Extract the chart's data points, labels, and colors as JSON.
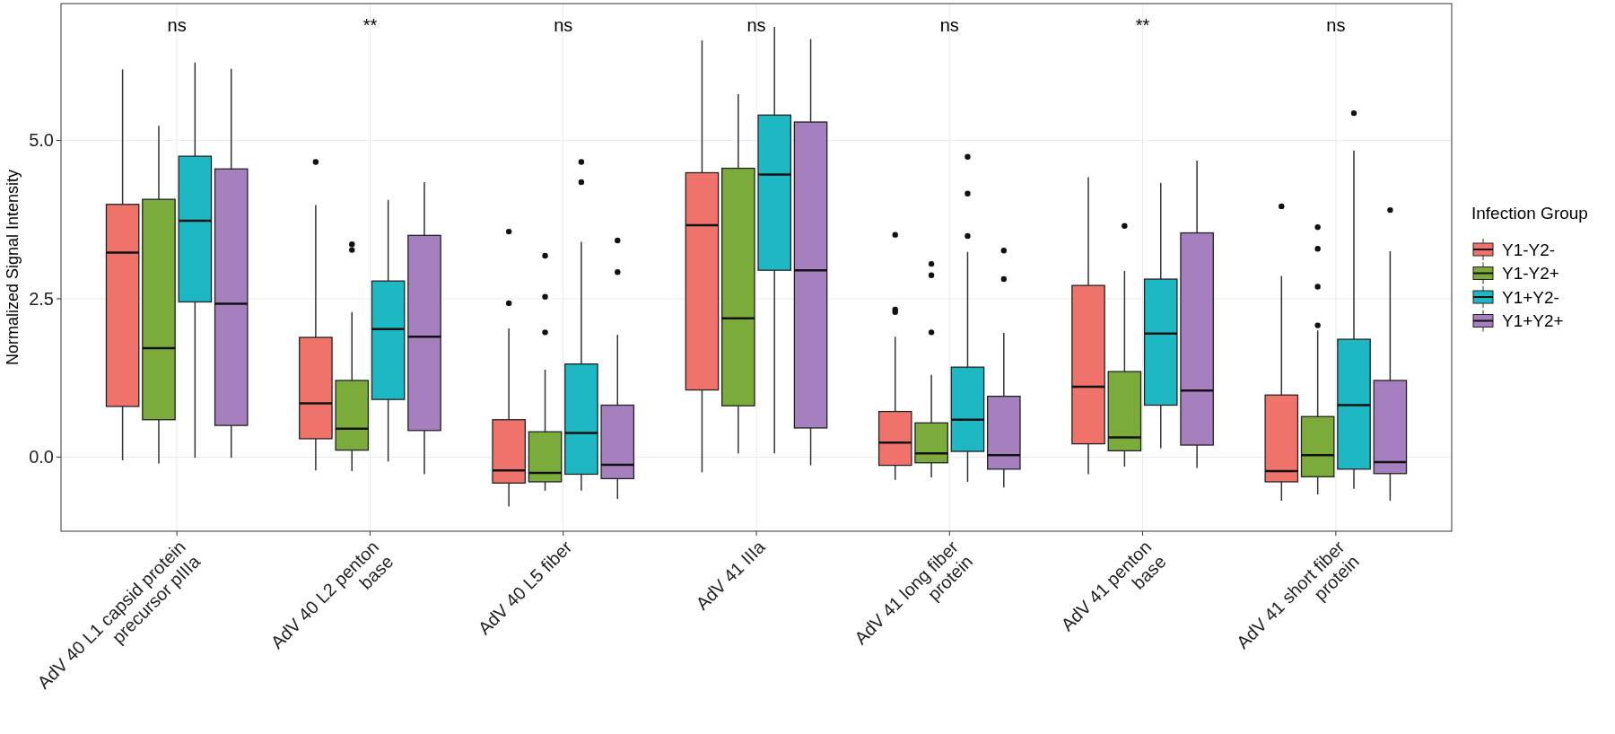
{
  "chart_data": {
    "type": "box",
    "ylabel": "Normalized Signal Intensity",
    "legend_title": "Infection Group",
    "legend": "right",
    "grid": true,
    "marker": "circle",
    "categories": [
      "AdV 40 L1 capsid protein\nprecursor pIIIa",
      "AdV 40 L2 penton\nbase",
      "AdV 40 L5 fiber",
      "AdV 41 IIIa",
      "AdV 41 long fiber\nprotein",
      "AdV 41 penton\nbase",
      "AdV 41 short fiber\nprotein"
    ],
    "ylim": [
      -1.17,
      7.16
    ],
    "yticks": [
      {
        "value": 0,
        "label": "0.0"
      },
      {
        "value": 2.5,
        "label": "2.5"
      },
      {
        "value": 5,
        "label": "5.0"
      }
    ],
    "annotations": [
      "ns",
      "**",
      "ns",
      "ns",
      "ns",
      "**",
      "ns"
    ],
    "series": [
      {
        "name": "Y1-Y2-",
        "color": "#f0736b",
        "boxes": [
          {
            "low": -0.05,
            "q1": 0.8,
            "median": 3.23,
            "q3": 3.99,
            "high": 6.12
          },
          {
            "low": -0.21,
            "q1": 0.29,
            "median": 0.85,
            "q3": 1.89,
            "high": 3.98,
            "outliers": [
              4.66
            ]
          },
          {
            "low": -0.78,
            "q1": -0.41,
            "median": -0.21,
            "q3": 0.59,
            "high": 2.03,
            "outliers": [
              3.56,
              2.43
            ]
          },
          {
            "low": -0.24,
            "q1": 1.06,
            "median": 3.66,
            "q3": 4.49,
            "high": 6.58
          },
          {
            "low": -0.36,
            "q1": -0.13,
            "median": 0.23,
            "q3": 0.72,
            "high": 1.9,
            "outliers": [
              3.51,
              2.33,
              2.29
            ]
          },
          {
            "low": -0.27,
            "q1": 0.21,
            "median": 1.11,
            "q3": 2.71,
            "high": 4.42
          },
          {
            "low": -0.69,
            "q1": -0.39,
            "median": -0.22,
            "q3": 0.98,
            "high": 2.86,
            "outliers": [
              3.96
            ]
          }
        ]
      },
      {
        "name": "Y1-Y2+",
        "color": "#7bab3a",
        "boxes": [
          {
            "low": -0.1,
            "q1": 0.59,
            "median": 1.72,
            "q3": 4.07,
            "high": 5.23
          },
          {
            "low": -0.22,
            "q1": 0.11,
            "median": 0.45,
            "q3": 1.21,
            "high": 2.29,
            "outliers": [
              3.36,
              3.27
            ]
          },
          {
            "low": -0.53,
            "q1": -0.39,
            "median": -0.25,
            "q3": 0.4,
            "high": 1.38,
            "outliers": [
              3.18,
              2.53,
              1.97
            ]
          },
          {
            "low": 0.06,
            "q1": 0.81,
            "median": 2.19,
            "q3": 4.56,
            "high": 5.73
          },
          {
            "low": -0.32,
            "q1": -0.09,
            "median": 0.06,
            "q3": 0.54,
            "high": 1.3,
            "outliers": [
              3.05,
              2.87,
              1.97
            ]
          },
          {
            "low": -0.15,
            "q1": 0.1,
            "median": 0.31,
            "q3": 1.35,
            "high": 2.94,
            "outliers": [
              3.65
            ]
          },
          {
            "low": -0.59,
            "q1": -0.31,
            "median": 0.03,
            "q3": 0.64,
            "high": 2.0,
            "outliers": [
              3.63,
              3.29,
              2.69,
              2.08
            ]
          }
        ]
      },
      {
        "name": "Y1+Y2-",
        "color": "#1db8c3",
        "boxes": [
          {
            "low": -0.01,
            "q1": 2.45,
            "median": 3.73,
            "q3": 4.75,
            "high": 6.23
          },
          {
            "low": -0.07,
            "q1": 0.91,
            "median": 2.02,
            "q3": 2.78,
            "high": 4.06
          },
          {
            "low": -0.53,
            "q1": -0.27,
            "median": 0.38,
            "q3": 1.47,
            "high": 3.4,
            "outliers": [
              4.66,
              4.34
            ]
          },
          {
            "low": 0.06,
            "q1": 2.95,
            "median": 4.46,
            "q3": 5.4,
            "high": 6.79
          },
          {
            "low": -0.39,
            "q1": 0.09,
            "median": 0.59,
            "q3": 1.42,
            "high": 3.24,
            "outliers": [
              4.74,
              4.16,
              3.49
            ]
          },
          {
            "low": 0.14,
            "q1": 0.82,
            "median": 1.95,
            "q3": 2.81,
            "high": 4.33
          },
          {
            "low": -0.5,
            "q1": -0.19,
            "median": 0.82,
            "q3": 1.86,
            "high": 4.84,
            "outliers": [
              5.43
            ]
          }
        ]
      },
      {
        "name": "Y1+Y2+",
        "color": "#a67fbf",
        "boxes": [
          {
            "low": -0.01,
            "q1": 0.5,
            "median": 2.42,
            "q3": 4.55,
            "high": 6.13
          },
          {
            "low": -0.27,
            "q1": 0.42,
            "median": 1.9,
            "q3": 3.5,
            "high": 4.34
          },
          {
            "low": -0.66,
            "q1": -0.34,
            "median": -0.12,
            "q3": 0.82,
            "high": 1.93,
            "outliers": [
              3.42,
              2.92
            ]
          },
          {
            "low": -0.13,
            "q1": 0.46,
            "median": 2.95,
            "q3": 5.29,
            "high": 6.6
          },
          {
            "low": -0.48,
            "q1": -0.19,
            "median": 0.03,
            "q3": 0.96,
            "high": 1.96,
            "outliers": [
              3.26,
              2.81
            ]
          },
          {
            "low": -0.17,
            "q1": 0.19,
            "median": 1.05,
            "q3": 3.54,
            "high": 4.68
          },
          {
            "low": -0.69,
            "q1": -0.26,
            "median": -0.08,
            "q3": 1.21,
            "high": 3.25,
            "outliers": [
              3.9
            ]
          }
        ]
      }
    ]
  }
}
